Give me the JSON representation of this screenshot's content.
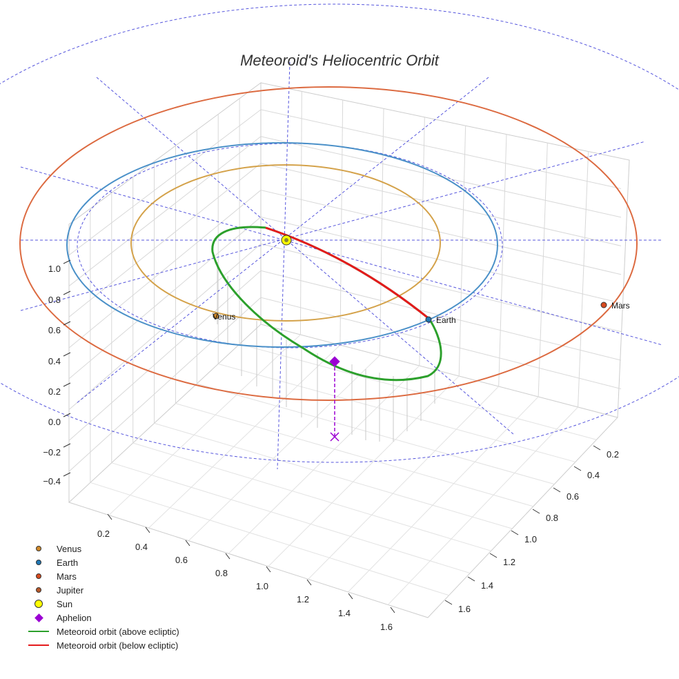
{
  "chart_data": {
    "type": "scatter",
    "title": "Meteoroid's Heliocentric Orbit",
    "z_ticks": [
      "−0.4",
      "−0.2",
      "0.0",
      "0.2",
      "0.4",
      "0.6",
      "0.8",
      "1.0"
    ],
    "x_ticks": [
      "0.2",
      "0.4",
      "0.6",
      "0.8",
      "1.0",
      "1.2",
      "1.4",
      "1.6"
    ],
    "y_ticks": [
      "0.2",
      "0.4",
      "0.6",
      "0.8",
      "1.0",
      "1.2",
      "1.4",
      "1.6"
    ],
    "planets": [
      {
        "name": "Venus",
        "label": "Venus",
        "color": "#d0892a"
      },
      {
        "name": "Earth",
        "label": "Earth",
        "color": "#1f77b4"
      },
      {
        "name": "Mars",
        "label": "Mars",
        "color": "#d64a1e"
      },
      {
        "name": "Jupiter",
        "label": "",
        "color": "#b7582a"
      }
    ],
    "sun": {
      "name": "Sun",
      "color": "#ffff00"
    },
    "aphelion": {
      "name": "Aphelion",
      "color": "#9b00d3"
    },
    "orbit_colors": {
      "venus": "#d4a24a",
      "earth": "#4a90c8",
      "mars": "#dc6a40"
    },
    "meteoroid": {
      "above_name": "Meteoroid orbit (above ecliptic)",
      "below_name": "Meteoroid orbit (below ecliptic)",
      "above_color": "#2ca02c",
      "below_color": "#e41a1c"
    },
    "reference_grid_color": "#5555dd",
    "grid": true,
    "legend_position": "bottom-left"
  }
}
